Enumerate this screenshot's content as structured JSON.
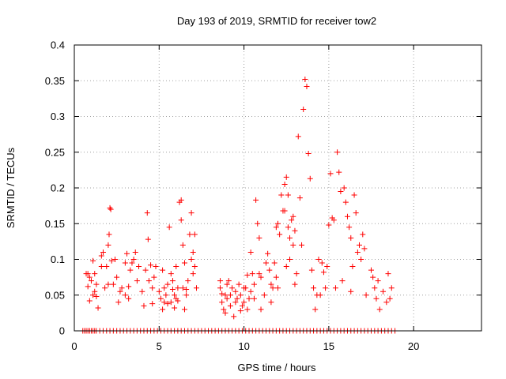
{
  "chart_data": {
    "type": "scatter",
    "title": "Day 193 of 2019, SRMTID for receiver tow2",
    "xlabel": "GPS time / hours",
    "ylabel": "SRMTID / TECUs",
    "xlim": [
      0,
      24
    ],
    "ylim": [
      0,
      0.4
    ],
    "xticks": [
      0,
      5,
      10,
      15,
      20
    ],
    "yticks": [
      0,
      0.05,
      0.1,
      0.15,
      0.2,
      0.25,
      0.3,
      0.35,
      0.4
    ],
    "xtick_labels": [
      "0",
      "5",
      "10",
      "15",
      "20"
    ],
    "ytick_labels": [
      "0",
      "0.05",
      "0.1",
      "0.15",
      "0.2",
      "0.25",
      "0.3",
      "0.35",
      "0.4"
    ],
    "grid": true,
    "marker": "+",
    "color": "#ff0000",
    "series": [
      {
        "name": "SRMTID",
        "points": [
          [
            0.8,
            0.08
          ],
          [
            0.9,
            0.075
          ],
          [
            0.9,
            0.042
          ],
          [
            1.0,
            0.07
          ],
          [
            1.1,
            0.098
          ],
          [
            1.2,
            0.08
          ],
          [
            1.2,
            0.055
          ],
          [
            1.3,
            0.048
          ],
          [
            1.4,
            0.032
          ],
          [
            1.3,
            0.065
          ],
          [
            1.6,
            0.105
          ],
          [
            1.7,
            0.11
          ],
          [
            1.8,
            0.06
          ],
          [
            1.9,
            0.09
          ],
          [
            2.0,
            0.12
          ],
          [
            2.05,
            0.135
          ],
          [
            2.1,
            0.172
          ],
          [
            2.15,
            0.17
          ],
          [
            2.2,
            0.098
          ],
          [
            2.3,
            0.065
          ],
          [
            2.4,
            0.1
          ],
          [
            2.5,
            0.075
          ],
          [
            2.6,
            0.04
          ],
          [
            2.8,
            0.06
          ],
          [
            3.0,
            0.095
          ],
          [
            3.1,
            0.108
          ],
          [
            3.2,
            0.062
          ],
          [
            3.3,
            0.085
          ],
          [
            3.5,
            0.1
          ],
          [
            3.6,
            0.11
          ],
          [
            3.7,
            0.07
          ],
          [
            4.0,
            0.055
          ],
          [
            4.1,
            0.035
          ],
          [
            4.2,
            0.085
          ],
          [
            4.3,
            0.165
          ],
          [
            4.35,
            0.128
          ],
          [
            4.4,
            0.07
          ],
          [
            4.5,
            0.092
          ],
          [
            4.6,
            0.06
          ],
          [
            4.6,
            0.038
          ],
          [
            5.0,
            0.055
          ],
          [
            5.1,
            0.045
          ],
          [
            5.2,
            0.03
          ],
          [
            5.3,
            0.06
          ],
          [
            5.4,
            0.05
          ],
          [
            5.5,
            0.065
          ],
          [
            5.6,
            0.145
          ],
          [
            5.7,
            0.08
          ],
          [
            5.7,
            0.04
          ],
          [
            5.8,
            0.07
          ],
          [
            5.9,
            0.05
          ],
          [
            6.0,
            0.045
          ],
          [
            6.0,
            0.09
          ],
          [
            6.1,
            0.06
          ],
          [
            6.2,
            0.18
          ],
          [
            6.3,
            0.183
          ],
          [
            6.3,
            0.155
          ],
          [
            6.4,
            0.12
          ],
          [
            6.5,
            0.095
          ],
          [
            6.6,
            0.05
          ],
          [
            6.7,
            0.07
          ],
          [
            6.8,
            0.135
          ],
          [
            6.9,
            0.165
          ],
          [
            7.0,
            0.11
          ],
          [
            7.1,
            0.135
          ],
          [
            7.2,
            0.06
          ],
          [
            6.5,
            0.03
          ],
          [
            7.0,
            0.08
          ],
          [
            5.9,
            0.032
          ],
          [
            6.4,
            0.06
          ],
          [
            8.6,
            0.06
          ],
          [
            8.7,
            0.04
          ],
          [
            8.8,
            0.03
          ],
          [
            8.9,
            0.05
          ],
          [
            9.0,
            0.045
          ],
          [
            9.1,
            0.07
          ],
          [
            9.2,
            0.035
          ],
          [
            9.3,
            0.06
          ],
          [
            9.4,
            0.02
          ],
          [
            9.5,
            0.055
          ],
          [
            9.6,
            0.045
          ],
          [
            9.8,
            0.05
          ],
          [
            10.0,
            0.04
          ],
          [
            10.1,
            0.06
          ],
          [
            10.2,
            0.078
          ],
          [
            10.3,
            0.045
          ],
          [
            10.4,
            0.055
          ],
          [
            10.5,
            0.08
          ],
          [
            10.6,
            0.065
          ],
          [
            10.7,
            0.183
          ],
          [
            10.8,
            0.15
          ],
          [
            10.9,
            0.13
          ],
          [
            11.0,
            0.075
          ],
          [
            11.0,
            0.03
          ],
          [
            11.2,
            0.05
          ],
          [
            11.4,
            0.108
          ],
          [
            11.5,
            0.085
          ],
          [
            11.6,
            0.04
          ],
          [
            11.7,
            0.06
          ],
          [
            11.8,
            0.095
          ],
          [
            11.9,
            0.145
          ],
          [
            12.0,
            0.15
          ],
          [
            12.0,
            0.06
          ],
          [
            12.2,
            0.19
          ],
          [
            12.3,
            0.168
          ],
          [
            12.4,
            0.205
          ],
          [
            12.5,
            0.215
          ],
          [
            12.6,
            0.19
          ],
          [
            12.6,
            0.145
          ],
          [
            12.7,
            0.1
          ],
          [
            12.8,
            0.155
          ],
          [
            12.9,
            0.12
          ],
          [
            13.0,
            0.065
          ],
          [
            13.2,
            0.272
          ],
          [
            13.3,
            0.186
          ],
          [
            13.4,
            0.12
          ],
          [
            13.5,
            0.31
          ],
          [
            13.6,
            0.352
          ],
          [
            13.7,
            0.342
          ],
          [
            13.8,
            0.248
          ],
          [
            13.9,
            0.213
          ],
          [
            14.0,
            0.085
          ],
          [
            14.1,
            0.06
          ],
          [
            14.2,
            0.03
          ],
          [
            14.3,
            0.05
          ],
          [
            14.4,
            0.1
          ],
          [
            14.6,
            0.095
          ],
          [
            14.7,
            0.082
          ],
          [
            14.8,
            0.06
          ],
          [
            14.9,
            0.09
          ],
          [
            15.0,
            0.148
          ],
          [
            15.1,
            0.22
          ],
          [
            15.2,
            0.158
          ],
          [
            15.5,
            0.25
          ],
          [
            15.6,
            0.222
          ],
          [
            15.7,
            0.195
          ],
          [
            15.8,
            0.07
          ],
          [
            15.9,
            0.2
          ],
          [
            16.0,
            0.18
          ],
          [
            16.1,
            0.16
          ],
          [
            16.2,
            0.145
          ],
          [
            16.3,
            0.13
          ],
          [
            16.4,
            0.09
          ],
          [
            16.5,
            0.19
          ],
          [
            16.6,
            0.165
          ],
          [
            16.7,
            0.11
          ],
          [
            16.8,
            0.12
          ],
          [
            16.9,
            0.1
          ],
          [
            17.0,
            0.135
          ],
          [
            17.1,
            0.115
          ],
          [
            17.5,
            0.085
          ],
          [
            17.6,
            0.075
          ],
          [
            17.7,
            0.06
          ],
          [
            17.8,
            0.045
          ],
          [
            17.9,
            0.07
          ],
          [
            18.0,
            0.03
          ],
          [
            18.2,
            0.055
          ],
          [
            18.4,
            0.04
          ],
          [
            18.6,
            0.045
          ],
          [
            18.7,
            0.06
          ],
          [
            18.5,
            0.08
          ],
          [
            17.2,
            0.05
          ],
          [
            16.3,
            0.055
          ],
          [
            15.3,
            0.155
          ],
          [
            15.4,
            0.06
          ],
          [
            14.5,
            0.05
          ],
          [
            13.1,
            0.08
          ],
          [
            12.9,
            0.16
          ],
          [
            12.1,
            0.135
          ],
          [
            12.4,
            0.168
          ],
          [
            11.3,
            0.095
          ],
          [
            11.6,
            0.065
          ],
          [
            11.9,
            0.075
          ],
          [
            12.5,
            0.09
          ],
          [
            12.7,
            0.13
          ],
          [
            13.0,
            0.14
          ],
          [
            10.9,
            0.08
          ],
          [
            10.6,
            0.045
          ],
          [
            10.4,
            0.11
          ],
          [
            10.2,
            0.03
          ],
          [
            9.9,
            0.035
          ],
          [
            9.7,
            0.065
          ],
          [
            9.2,
            0.05
          ],
          [
            9.0,
            0.065
          ],
          [
            8.9,
            0.025
          ],
          [
            8.7,
            0.052
          ],
          [
            8.6,
            0.07
          ],
          [
            9.5,
            0.04
          ],
          [
            9.8,
            0.028
          ],
          [
            10.0,
            0.06
          ],
          [
            5.2,
            0.085
          ],
          [
            5.3,
            0.04
          ],
          [
            5.5,
            0.038
          ],
          [
            5.8,
            0.058
          ],
          [
            6.1,
            0.042
          ],
          [
            6.6,
            0.058
          ],
          [
            6.9,
            0.1
          ],
          [
            7.1,
            0.09
          ],
          [
            4.7,
            0.075
          ],
          [
            4.8,
            0.09
          ],
          [
            3.2,
            0.045
          ],
          [
            3.4,
            0.095
          ],
          [
            3.8,
            0.09
          ],
          [
            3.0,
            0.05
          ],
          [
            2.7,
            0.055
          ],
          [
            2.0,
            0.065
          ],
          [
            1.6,
            0.09
          ],
          [
            1.1,
            0.05
          ],
          [
            0.7,
            0.08
          ],
          [
            0.8,
            0.062
          ]
        ],
        "zero_x": [
          0.5,
          0.6,
          0.7,
          0.8,
          0.9,
          1.0,
          1.1,
          1.2,
          1.3,
          1.5,
          1.7,
          1.9,
          2.1,
          2.3,
          2.5,
          2.7,
          2.9,
          3.1,
          3.3,
          3.5,
          3.7,
          3.9,
          4.1,
          4.3,
          4.5,
          4.7,
          4.9,
          5.1,
          5.3,
          5.5,
          5.7,
          5.9,
          6.1,
          6.3,
          6.5,
          6.7,
          6.9,
          7.1,
          7.3,
          7.5,
          7.7,
          7.9,
          8.1,
          8.3,
          8.5,
          8.7,
          8.9,
          9.1,
          9.3,
          9.5,
          9.7,
          9.9,
          10.1,
          10.3,
          10.5,
          10.7,
          10.9,
          11.1,
          11.3,
          11.5,
          11.7,
          11.9,
          12.1,
          12.3,
          12.5,
          12.7,
          12.9,
          13.1,
          13.3,
          13.5,
          13.7,
          13.9,
          14.1,
          14.3,
          14.5,
          14.7,
          14.9,
          15.1,
          15.3,
          15.5,
          15.7,
          15.9,
          16.1,
          16.3,
          16.5,
          16.7,
          16.9,
          17.1,
          17.3,
          17.5,
          17.7,
          17.9,
          18.1,
          18.3,
          18.5,
          18.7,
          18.9
        ]
      }
    ]
  }
}
